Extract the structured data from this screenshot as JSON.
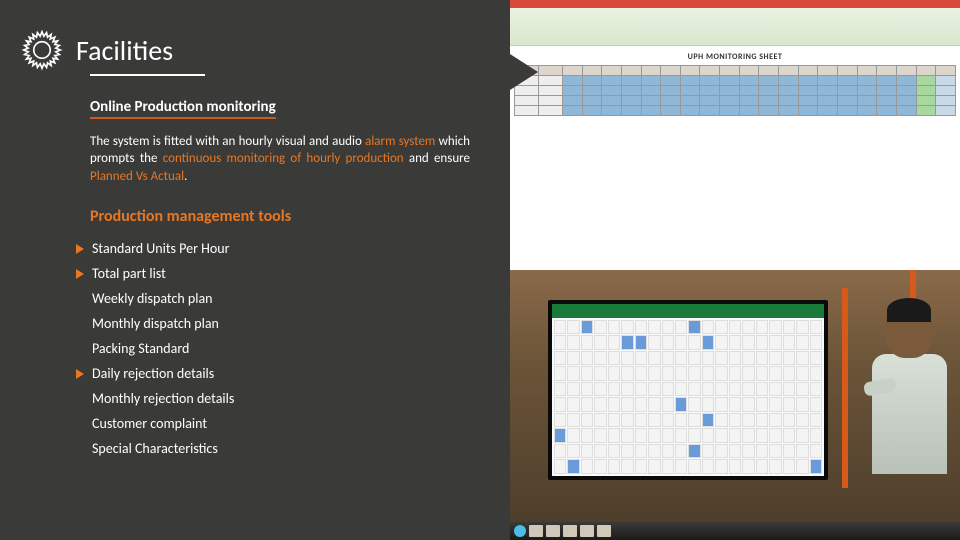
{
  "title": "Facilities",
  "subtitle1": "Online Production monitoring",
  "body": {
    "pre": "The system is fitted with an hourly visual and audio ",
    "hl1": "alarm system",
    "mid": " which prompts the ",
    "hl2": "continuous monitoring of hourly production",
    "post1": " and ensure ",
    "hl3": "Planned Vs Actual",
    "post2": "."
  },
  "subtitle2": "Production management tools",
  "tools": [
    {
      "label": "Standard Units Per Hour",
      "bullet_color": "#e87722"
    },
    {
      "label": "Total part list",
      "bullet_color": "#e87722"
    },
    {
      "label": "Weekly dispatch plan",
      "bullet_color": "#3a3a36"
    },
    {
      "label": "Monthly dispatch plan",
      "bullet_color": "#3a3a36"
    },
    {
      "label": "Packing Standard",
      "bullet_color": "#3a3a36"
    },
    {
      "label": "Daily rejection details",
      "bullet_color": "#e87722"
    },
    {
      "label": "Monthly rejection details",
      "bullet_color": "#3a3a36"
    },
    {
      "label": "Customer complaint",
      "bullet_color": "#3a3a36"
    },
    {
      "label": "Special Characteristics",
      "bullet_color": "#3a3a36"
    }
  ],
  "excel": {
    "sheet_title": "UPH MONITORING SHEET",
    "rows": 4,
    "cols": 22
  },
  "colors": {
    "bg_left": "#3a3a38",
    "accent": "#e87722",
    "accent_underline": "#cc5a1a",
    "text_light": "#ffffff"
  }
}
